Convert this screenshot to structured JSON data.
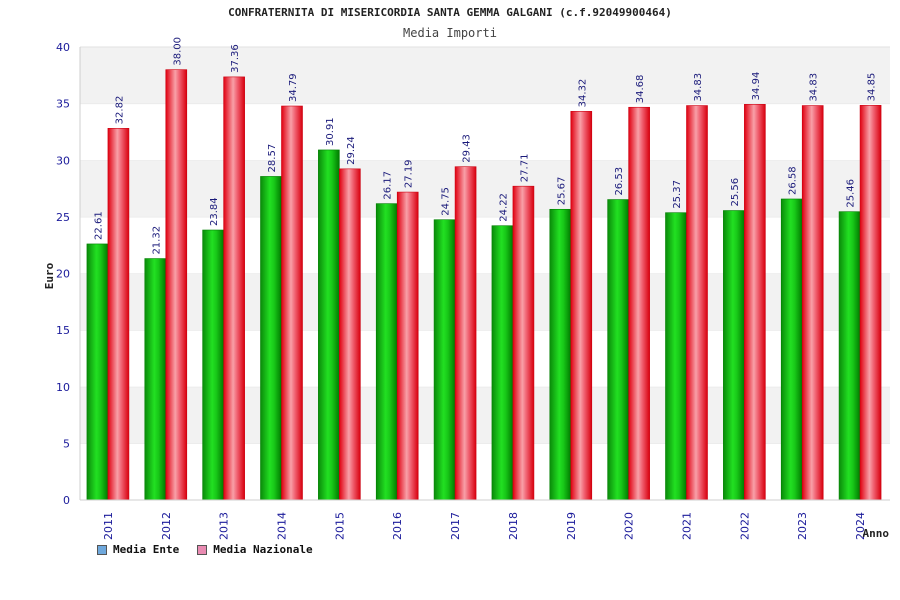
{
  "chart_data": {
    "type": "bar",
    "title": "CONFRATERNITA DI MISERICORDIA SANTA GEMMA GALGANI (c.f.92049900464)",
    "subtitle": "Media Importi",
    "xlabel": "Anno",
    "ylabel": "Euro",
    "ylim": [
      0,
      40
    ],
    "yticks": [
      0,
      5,
      10,
      15,
      20,
      25,
      30,
      35,
      40
    ],
    "grid": "horizontal bands",
    "legend_position": "bottom-left",
    "categories": [
      "2011",
      "2012",
      "2013",
      "2014",
      "2015",
      "2016",
      "2017",
      "2018",
      "2019",
      "2020",
      "2021",
      "2022",
      "2023",
      "2024"
    ],
    "series": [
      {
        "name": "Media Ente",
        "color": "#00b000",
        "legend_color": "#6fa8dc",
        "values": [
          22.61,
          21.32,
          23.84,
          28.57,
          30.91,
          26.17,
          24.75,
          24.22,
          25.67,
          26.53,
          25.37,
          25.56,
          26.58,
          25.46
        ]
      },
      {
        "name": "Media Nazionale",
        "color": "#e8101e",
        "legend_color": "#e98bb2",
        "values": [
          32.82,
          38.0,
          37.36,
          34.79,
          29.24,
          27.19,
          29.43,
          27.71,
          34.32,
          34.68,
          34.83,
          34.94,
          34.83,
          34.85
        ]
      }
    ],
    "value_labels": [
      [
        "22.61",
        "21.32",
        "23.84",
        "28.57",
        "30.91",
        "26.17",
        "24.75",
        "24.22",
        "25.67",
        "26.53",
        "25.37",
        "25.56",
        "26.58",
        "25.46"
      ],
      [
        "32.82",
        "38.00",
        "37.36",
        "34.79",
        "29.24",
        "27.19",
        "29.43",
        "27.71",
        "34.32",
        "34.68",
        "34.83",
        "34.94",
        "34.83",
        "34.85"
      ]
    ]
  }
}
